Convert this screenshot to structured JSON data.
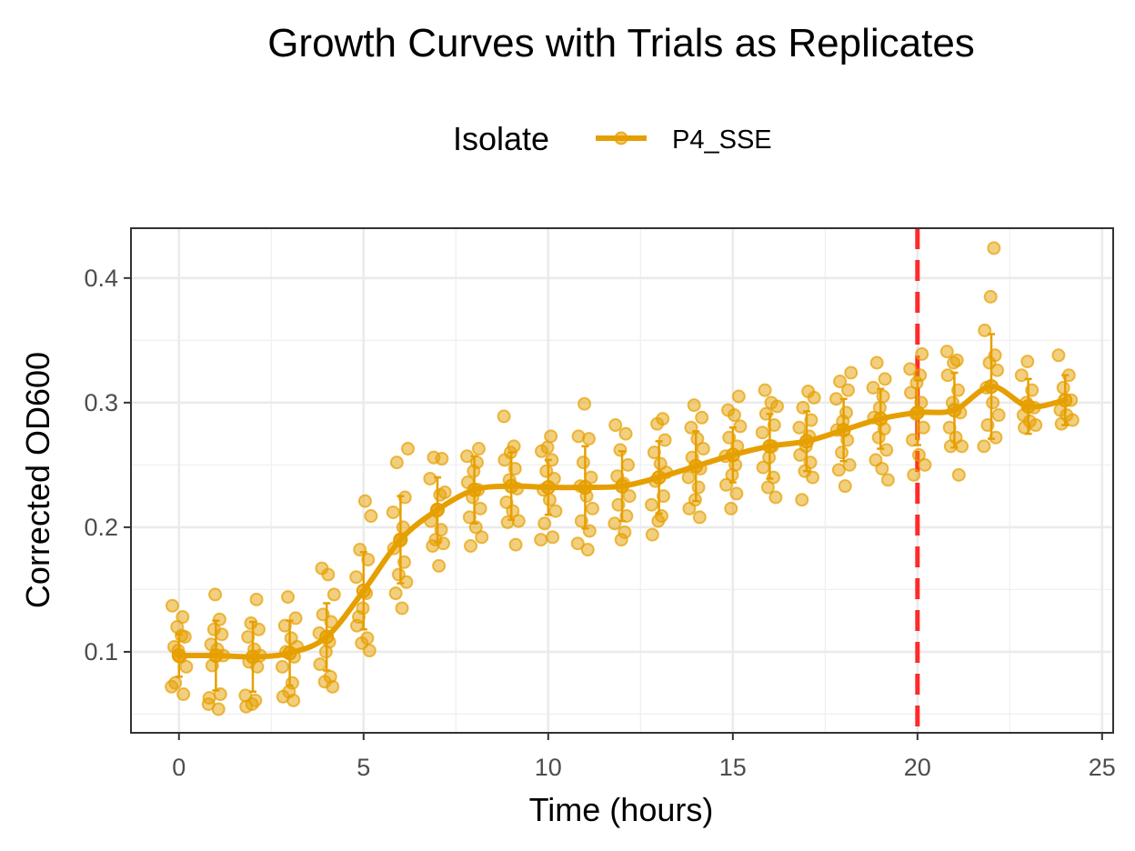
{
  "chart_data": {
    "type": "line",
    "title": "Growth Curves with Trials as Replicates",
    "xlabel": "Time (hours)",
    "ylabel": "Corrected OD600",
    "xlim": [
      -1.3,
      25.3
    ],
    "ylim": [
      0.035,
      0.44
    ],
    "x_ticks": [
      0,
      5,
      10,
      15,
      20,
      25
    ],
    "y_ticks": [
      0.1,
      0.2,
      0.3,
      0.4
    ],
    "x_tick_labels": [
      "0",
      "5",
      "10",
      "15",
      "20",
      "25"
    ],
    "y_tick_labels": [
      "0.1",
      "0.2",
      "0.3",
      "0.4"
    ],
    "grid": true,
    "legend": {
      "title": "Isolate",
      "position": "top"
    },
    "reference_line": {
      "x": 20,
      "color": "#ff2a2a",
      "style": "dashed"
    },
    "colors": {
      "series": "#e69f00"
    },
    "series": [
      {
        "name": "P4_SSE",
        "x": [
          0,
          1,
          2,
          3,
          4,
          5,
          6,
          7,
          8,
          9,
          10,
          11,
          12,
          13,
          14,
          15,
          16,
          17,
          18,
          19,
          20,
          21,
          22,
          23,
          24
        ],
        "mean": [
          0.097,
          0.097,
          0.096,
          0.099,
          0.112,
          0.149,
          0.19,
          0.214,
          0.23,
          0.233,
          0.232,
          0.232,
          0.233,
          0.24,
          0.249,
          0.258,
          0.265,
          0.269,
          0.278,
          0.287,
          0.292,
          0.294,
          0.313,
          0.297,
          0.302
        ],
        "sd": [
          0.017,
          0.028,
          0.028,
          0.026,
          0.027,
          0.031,
          0.035,
          0.026,
          0.027,
          0.027,
          0.022,
          0.033,
          0.028,
          0.029,
          0.028,
          0.022,
          0.026,
          0.024,
          0.025,
          0.024,
          0.026,
          0.03,
          0.042,
          0.022,
          0.02
        ],
        "replicates": [
          [
            0.137,
            0.128,
            0.12,
            0.112,
            0.104,
            0.096,
            0.088,
            0.075,
            0.066,
            0.072,
            0.113,
            0.101
          ],
          [
            0.126,
            0.118,
            0.114,
            0.106,
            0.102,
            0.097,
            0.089,
            0.066,
            0.058,
            0.054,
            0.146,
            0.063
          ],
          [
            0.123,
            0.118,
            0.112,
            0.102,
            0.097,
            0.092,
            0.088,
            0.065,
            0.061,
            0.058,
            0.056,
            0.142
          ],
          [
            0.127,
            0.121,
            0.111,
            0.104,
            0.1,
            0.096,
            0.088,
            0.075,
            0.068,
            0.064,
            0.061,
            0.144
          ],
          [
            0.167,
            0.162,
            0.146,
            0.13,
            0.124,
            0.115,
            0.108,
            0.1,
            0.09,
            0.08,
            0.076,
            0.072
          ],
          [
            0.221,
            0.209,
            0.182,
            0.174,
            0.16,
            0.147,
            0.135,
            0.121,
            0.111,
            0.107,
            0.101,
            0.128
          ],
          [
            0.263,
            0.252,
            0.224,
            0.212,
            0.2,
            0.189,
            0.183,
            0.172,
            0.162,
            0.156,
            0.147,
            0.135
          ],
          [
            0.256,
            0.255,
            0.239,
            0.226,
            0.213,
            0.205,
            0.198,
            0.19,
            0.187,
            0.185,
            0.169,
            0.228
          ],
          [
            0.263,
            0.257,
            0.252,
            0.245,
            0.236,
            0.23,
            0.224,
            0.215,
            0.208,
            0.2,
            0.192,
            0.185
          ],
          [
            0.289,
            0.265,
            0.26,
            0.254,
            0.247,
            0.238,
            0.231,
            0.22,
            0.213,
            0.205,
            0.204,
            0.186
          ],
          [
            0.273,
            0.264,
            0.261,
            0.254,
            0.245,
            0.239,
            0.23,
            0.222,
            0.213,
            0.203,
            0.192,
            0.19
          ],
          [
            0.299,
            0.273,
            0.271,
            0.252,
            0.24,
            0.233,
            0.225,
            0.215,
            0.205,
            0.197,
            0.187,
            0.182
          ],
          [
            0.282,
            0.275,
            0.262,
            0.25,
            0.241,
            0.235,
            0.225,
            0.218,
            0.209,
            0.203,
            0.196,
            0.19
          ],
          [
            0.287,
            0.283,
            0.27,
            0.26,
            0.251,
            0.244,
            0.237,
            0.225,
            0.218,
            0.209,
            0.205,
            0.194
          ],
          [
            0.298,
            0.288,
            0.28,
            0.271,
            0.263,
            0.256,
            0.247,
            0.24,
            0.232,
            0.222,
            0.215,
            0.208
          ],
          [
            0.305,
            0.294,
            0.29,
            0.281,
            0.272,
            0.265,
            0.257,
            0.25,
            0.242,
            0.234,
            0.227,
            0.215
          ],
          [
            0.31,
            0.3,
            0.297,
            0.291,
            0.282,
            0.276,
            0.265,
            0.256,
            0.248,
            0.24,
            0.232,
            0.224
          ],
          [
            0.309,
            0.304,
            0.296,
            0.286,
            0.28,
            0.273,
            0.265,
            0.258,
            0.252,
            0.245,
            0.24,
            0.222
          ],
          [
            0.324,
            0.317,
            0.31,
            0.303,
            0.292,
            0.285,
            0.278,
            0.27,
            0.26,
            0.25,
            0.246,
            0.233
          ],
          [
            0.332,
            0.319,
            0.312,
            0.305,
            0.296,
            0.288,
            0.279,
            0.272,
            0.262,
            0.254,
            0.247,
            0.238
          ],
          [
            0.339,
            0.327,
            0.322,
            0.316,
            0.308,
            0.3,
            0.291,
            0.28,
            0.27,
            0.258,
            0.25,
            0.242
          ],
          [
            0.341,
            0.334,
            0.332,
            0.322,
            0.31,
            0.3,
            0.292,
            0.28,
            0.272,
            0.265,
            0.265,
            0.242
          ],
          [
            0.424,
            0.385,
            0.358,
            0.338,
            0.332,
            0.326,
            0.312,
            0.3,
            0.29,
            0.282,
            0.272,
            0.265
          ],
          [
            0.333,
            0.322,
            0.31,
            0.3,
            0.296,
            0.29,
            0.285,
            0.282,
            0.28
          ],
          [
            0.338,
            0.322,
            0.312,
            0.302,
            0.294,
            0.29,
            0.286,
            0.283
          ]
        ]
      }
    ]
  }
}
